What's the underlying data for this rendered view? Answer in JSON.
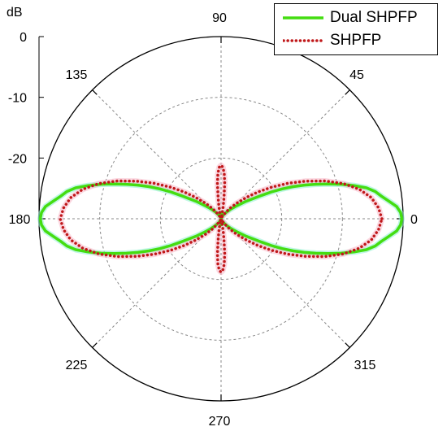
{
  "chart_data": {
    "type": "polar-line",
    "radial_unit_label": "dB",
    "radial_range": [
      -30,
      0
    ],
    "radial_ticks": [
      "0",
      "-10",
      "-20"
    ],
    "angle_ticks": [
      "0",
      "45",
      "90",
      "135",
      "180",
      "225",
      "270",
      "315"
    ],
    "grid": true,
    "legend_position": "top-right",
    "series": [
      {
        "name": "Dual SHPFP",
        "color": "#44dd11",
        "style": "solid",
        "angle_deg": [
          0,
          2,
          4,
          6,
          8,
          10,
          12,
          14,
          16,
          18,
          20,
          22,
          24,
          26,
          28,
          30,
          35,
          40,
          45,
          50,
          55,
          60,
          65,
          70,
          75,
          80,
          85,
          88,
          90
        ],
        "level_db": [
          -0.2,
          -0.4,
          -1.0,
          -2.2,
          -3.3,
          -4.2,
          -5.5,
          -7.4,
          -9.4,
          -11.5,
          -13.4,
          -15.2,
          -17.0,
          -18.8,
          -20.6,
          -22.3,
          -25.0,
          -26.8,
          -27.8,
          -28.5,
          -29.0,
          -29.4,
          -29.7,
          -29.8,
          -29.7,
          -29.5,
          -29.2,
          -29.0,
          -29.0
        ]
      },
      {
        "name": "SHPFP",
        "color": "#c0181a",
        "style": "dotted",
        "angle_deg": [
          0,
          4,
          8,
          12,
          16,
          20,
          24,
          28,
          32,
          36,
          40,
          45,
          50,
          55,
          60,
          65,
          70,
          75,
          80,
          82,
          84,
          86,
          88,
          90
        ],
        "level_db": [
          -3.5,
          -4.0,
          -5.0,
          -6.7,
          -9.0,
          -11.8,
          -14.8,
          -17.6,
          -20.2,
          -22.5,
          -24.5,
          -26.4,
          -27.8,
          -28.9,
          -29.6,
          -29.9,
          -29.9,
          -29.5,
          -28.0,
          -26.5,
          -24.2,
          -22.5,
          -21.5,
          -21.2
        ]
      }
    ]
  }
}
